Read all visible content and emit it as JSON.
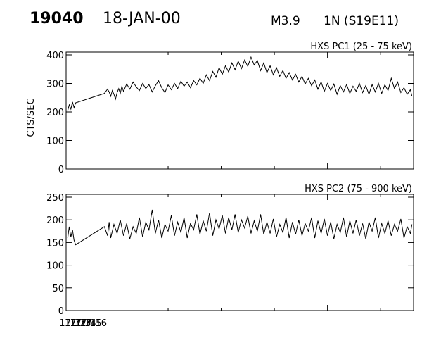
{
  "header": {
    "flare_id": "19040",
    "date": "18-JAN-00",
    "goes_class": "M3.9",
    "region": "1N (S19E11)"
  },
  "chart_data": [
    {
      "type": "line",
      "title": "HXS PC1 (25 - 75 keV)",
      "ylabel": "CTS/SEC",
      "xlabel": "",
      "ylim": [
        0,
        400
      ],
      "yticks": [
        "0",
        "100",
        "200",
        "300",
        "400"
      ],
      "xticks": [],
      "xlim": [
        17.18,
        18.27
      ],
      "grid": false,
      "series": [
        {
          "values": [
            [
              17.185,
              205
            ],
            [
              17.19,
              225
            ],
            [
              17.195,
              210
            ],
            [
              17.2,
              235
            ],
            [
              17.205,
              215
            ],
            [
              17.21,
              232
            ],
            [
              17.3,
              265
            ],
            [
              17.31,
              280
            ],
            [
              17.315,
              270
            ],
            [
              17.32,
              255
            ],
            [
              17.325,
              275
            ],
            [
              17.33,
              262
            ],
            [
              17.335,
              245
            ],
            [
              17.34,
              268
            ],
            [
              17.345,
              282
            ],
            [
              17.35,
              265
            ],
            [
              17.355,
              290
            ],
            [
              17.36,
              272
            ],
            [
              17.37,
              298
            ],
            [
              17.38,
              280
            ],
            [
              17.39,
              305
            ],
            [
              17.4,
              288
            ],
            [
              17.41,
              275
            ],
            [
              17.42,
              300
            ],
            [
              17.43,
              282
            ],
            [
              17.44,
              296
            ],
            [
              17.45,
              270
            ],
            [
              17.46,
              292
            ],
            [
              17.47,
              310
            ],
            [
              17.48,
              285
            ],
            [
              17.49,
              268
            ],
            [
              17.5,
              295
            ],
            [
              17.51,
              278
            ],
            [
              17.52,
              300
            ],
            [
              17.53,
              282
            ],
            [
              17.54,
              308
            ],
            [
              17.55,
              290
            ],
            [
              17.56,
              305
            ],
            [
              17.57,
              285
            ],
            [
              17.58,
              310
            ],
            [
              17.59,
              295
            ],
            [
              17.6,
              318
            ],
            [
              17.61,
              300
            ],
            [
              17.62,
              330
            ],
            [
              17.63,
              310
            ],
            [
              17.64,
              342
            ],
            [
              17.65,
              322
            ],
            [
              17.66,
              355
            ],
            [
              17.67,
              332
            ],
            [
              17.68,
              362
            ],
            [
              17.69,
              340
            ],
            [
              17.7,
              372
            ],
            [
              17.71,
              348
            ],
            [
              17.72,
              378
            ],
            [
              17.73,
              352
            ],
            [
              17.74,
              382
            ],
            [
              17.75,
              360
            ],
            [
              17.76,
              392
            ],
            [
              17.77,
              365
            ],
            [
              17.78,
              380
            ],
            [
              17.79,
              345
            ],
            [
              17.8,
              372
            ],
            [
              17.81,
              338
            ],
            [
              17.82,
              362
            ],
            [
              17.83,
              330
            ],
            [
              17.84,
              355
            ],
            [
              17.85,
              325
            ],
            [
              17.86,
              345
            ],
            [
              17.87,
              318
            ],
            [
              17.88,
              338
            ],
            [
              17.89,
              312
            ],
            [
              17.9,
              332
            ],
            [
              17.91,
              305
            ],
            [
              17.92,
              325
            ],
            [
              17.93,
              298
            ],
            [
              17.94,
              318
            ],
            [
              17.95,
              292
            ],
            [
              17.96,
              312
            ],
            [
              17.97,
              280
            ],
            [
              17.98,
              305
            ],
            [
              17.99,
              272
            ],
            [
              18.0,
              300
            ],
            [
              18.01,
              275
            ],
            [
              18.02,
              298
            ],
            [
              18.03,
              262
            ],
            [
              18.04,
              292
            ],
            [
              18.05,
              270
            ],
            [
              18.06,
              296
            ],
            [
              18.07,
              265
            ],
            [
              18.08,
              290
            ],
            [
              18.09,
              272
            ],
            [
              18.1,
              300
            ],
            [
              18.11,
              268
            ],
            [
              18.12,
              292
            ],
            [
              18.13,
              262
            ],
            [
              18.14,
              296
            ],
            [
              18.15,
              270
            ],
            [
              18.16,
              300
            ],
            [
              18.17,
              265
            ],
            [
              18.18,
              295
            ],
            [
              18.19,
              275
            ],
            [
              18.2,
              318
            ],
            [
              18.21,
              282
            ],
            [
              18.22,
              305
            ],
            [
              18.23,
              268
            ],
            [
              18.24,
              285
            ],
            [
              18.25,
              262
            ],
            [
              18.26,
              278
            ],
            [
              18.265,
              255
            ]
          ]
        }
      ]
    },
    {
      "type": "line",
      "title": "HXS PC2 (75 - 900 keV)",
      "ylabel": "",
      "xlabel": "",
      "ylim": [
        0,
        250
      ],
      "yticks": [
        "0",
        "50",
        "100",
        "150",
        "200",
        "250"
      ],
      "xticks": [
        "17:12",
        "17:13",
        "17:14",
        "17:15",
        "17:16"
      ],
      "xlim": [
        17.18,
        18.27
      ],
      "grid": false,
      "series": [
        {
          "values": [
            [
              17.185,
              160
            ],
            [
              17.19,
              185
            ],
            [
              17.195,
              162
            ],
            [
              17.2,
              178
            ],
            [
              17.205,
              155
            ],
            [
              17.21,
              145
            ],
            [
              17.3,
              185
            ],
            [
              17.31,
              165
            ],
            [
              17.315,
              195
            ],
            [
              17.32,
              160
            ],
            [
              17.33,
              190
            ],
            [
              17.34,
              170
            ],
            [
              17.35,
              200
            ],
            [
              17.36,
              165
            ],
            [
              17.37,
              192
            ],
            [
              17.38,
              158
            ],
            [
              17.39,
              185
            ],
            [
              17.4,
              170
            ],
            [
              17.41,
              205
            ],
            [
              17.42,
              162
            ],
            [
              17.43,
              195
            ],
            [
              17.44,
              178
            ],
            [
              17.45,
              222
            ],
            [
              17.46,
              170
            ],
            [
              17.47,
              200
            ],
            [
              17.48,
              160
            ],
            [
              17.49,
              190
            ],
            [
              17.5,
              175
            ],
            [
              17.51,
              210
            ],
            [
              17.52,
              165
            ],
            [
              17.53,
              195
            ],
            [
              17.54,
              172
            ],
            [
              17.55,
              205
            ],
            [
              17.56,
              160
            ],
            [
              17.57,
              192
            ],
            [
              17.58,
              178
            ],
            [
              17.59,
              212
            ],
            [
              17.6,
              168
            ],
            [
              17.61,
              198
            ],
            [
              17.62,
              175
            ],
            [
              17.63,
              215
            ],
            [
              17.64,
              165
            ],
            [
              17.65,
              200
            ],
            [
              17.66,
              180
            ],
            [
              17.67,
              210
            ],
            [
              17.68,
              170
            ],
            [
              17.69,
              205
            ],
            [
              17.7,
              178
            ],
            [
              17.71,
              212
            ],
            [
              17.72,
              172
            ],
            [
              17.73,
              200
            ],
            [
              17.74,
              182
            ],
            [
              17.75,
              208
            ],
            [
              17.76,
              170
            ],
            [
              17.77,
              198
            ],
            [
              17.78,
              175
            ],
            [
              17.79,
              212
            ],
            [
              17.8,
              168
            ],
            [
              17.81,
              195
            ],
            [
              17.82,
              170
            ],
            [
              17.83,
              202
            ],
            [
              17.84,
              162
            ],
            [
              17.85,
              190
            ],
            [
              17.86,
              172
            ],
            [
              17.87,
              205
            ],
            [
              17.88,
              160
            ],
            [
              17.89,
              195
            ],
            [
              17.9,
              168
            ],
            [
              17.91,
              200
            ],
            [
              17.92,
              165
            ],
            [
              17.93,
              192
            ],
            [
              17.94,
              175
            ],
            [
              17.95,
              205
            ],
            [
              17.96,
              160
            ],
            [
              17.97,
              198
            ],
            [
              17.98,
              170
            ],
            [
              17.99,
              202
            ],
            [
              18.0,
              165
            ],
            [
              18.01,
              195
            ],
            [
              18.02,
              158
            ],
            [
              18.03,
              190
            ],
            [
              18.04,
              172
            ],
            [
              18.05,
              205
            ],
            [
              18.06,
              162
            ],
            [
              18.07,
              198
            ],
            [
              18.08,
              170
            ],
            [
              18.09,
              200
            ],
            [
              18.1,
              165
            ],
            [
              18.11,
              192
            ],
            [
              18.12,
              158
            ],
            [
              18.13,
              195
            ],
            [
              18.14,
              175
            ],
            [
              18.15,
              205
            ],
            [
              18.16,
              160
            ],
            [
              18.17,
              192
            ],
            [
              18.18,
              170
            ],
            [
              18.19,
              198
            ],
            [
              18.2,
              165
            ],
            [
              18.21,
              190
            ],
            [
              18.22,
              175
            ],
            [
              18.23,
              202
            ],
            [
              18.24,
              160
            ],
            [
              18.25,
              185
            ],
            [
              18.26,
              170
            ],
            [
              18.265,
              190
            ]
          ]
        }
      ]
    }
  ]
}
